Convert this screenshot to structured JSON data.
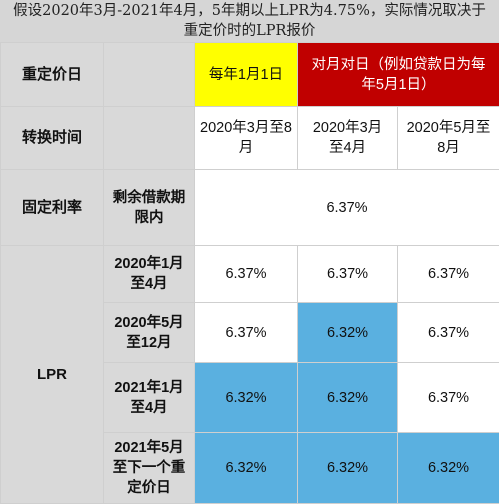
{
  "title": {
    "line1": "假设2020年3月-2021年4月，5年期以上LPR为4.75%，实际情况取决于",
    "line2": "重定价时的LPR报价"
  },
  "table": {
    "row_reprice": {
      "label": "重定价日",
      "option_a": "每年1月1日",
      "option_b_line1": "对月对日（例如贷款日为每",
      "option_b_line2": "年5月1日）"
    },
    "row_convert": {
      "label": "转换时间",
      "col1_line1": "2020年3月至8",
      "col1_line2": "月",
      "col2_line1": "2020年3月",
      "col2_line2": "至4月",
      "col3_line1": "2020年5月至",
      "col3_line2": "8月"
    },
    "row_fixed": {
      "label": "固定利率",
      "sub_line1": "剩余借款期",
      "sub_line2": "限内",
      "value": "6.37%"
    },
    "lpr_label": "LPR",
    "lpr_rows": [
      {
        "period_line1": "2020年1月",
        "period_line2": "至4月",
        "period_line3": "",
        "v1": "6.37%",
        "v2": "6.37%",
        "v3": "6.37%"
      },
      {
        "period_line1": "2020年5月",
        "period_line2": "至12月",
        "period_line3": "",
        "v1": "6.37%",
        "v2": "6.32%",
        "v3": "6.37%"
      },
      {
        "period_line1": "2021年1月",
        "period_line2": "至4月",
        "period_line3": "",
        "v1": "6.32%",
        "v2": "6.32%",
        "v3": "6.37%"
      },
      {
        "period_line1": "2021年5月",
        "period_line2": "至下一个重",
        "period_line3": "定价日",
        "v1": "6.32%",
        "v2": "6.32%",
        "v3": "6.32%"
      }
    ],
    "colors": {
      "header_gray": "#d9d9d9",
      "yellow": "#ffff00",
      "red": "#c00000",
      "blue": "#5ab0e0"
    }
  }
}
